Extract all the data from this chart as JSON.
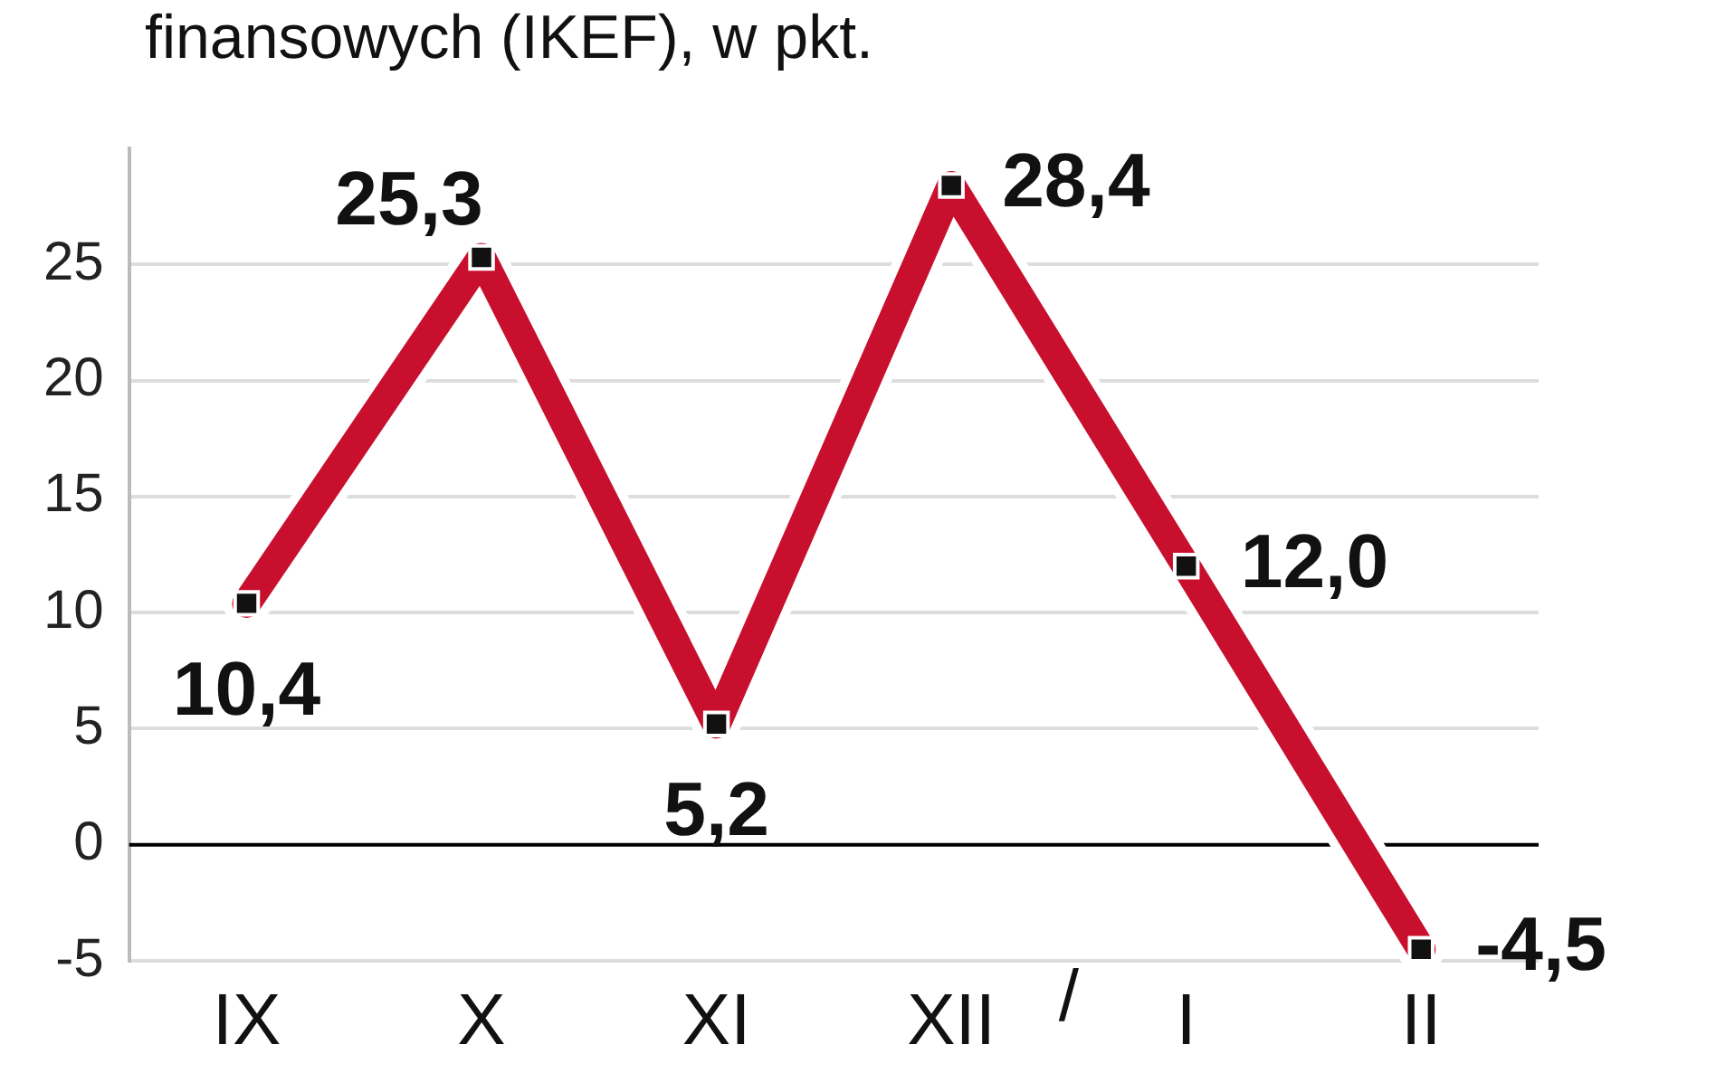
{
  "chart_data": {
    "type": "line",
    "title": "finansowych (IKEF), w pkt.",
    "categories": [
      "IX",
      "X",
      "XI",
      "XII",
      "I",
      "II"
    ],
    "series": [
      {
        "color": "#c8102e",
        "values": [
          10.4,
          25.3,
          5.2,
          28.4,
          12.0,
          -4.5
        ]
      }
    ],
    "value_labels": [
      "10,4",
      "25,3",
      "5,2",
      "28,4",
      "12,0",
      "-4,5"
    ],
    "ylim": [
      -5,
      30
    ],
    "yticks": [
      -5,
      0,
      5,
      10,
      15,
      20,
      25
    ],
    "ref_lines": [
      {
        "axis": "y",
        "value": 0,
        "color": "#000000"
      }
    ],
    "annotations": [
      "/"
    ],
    "grid": "y",
    "marker": "square",
    "legend": false
  }
}
